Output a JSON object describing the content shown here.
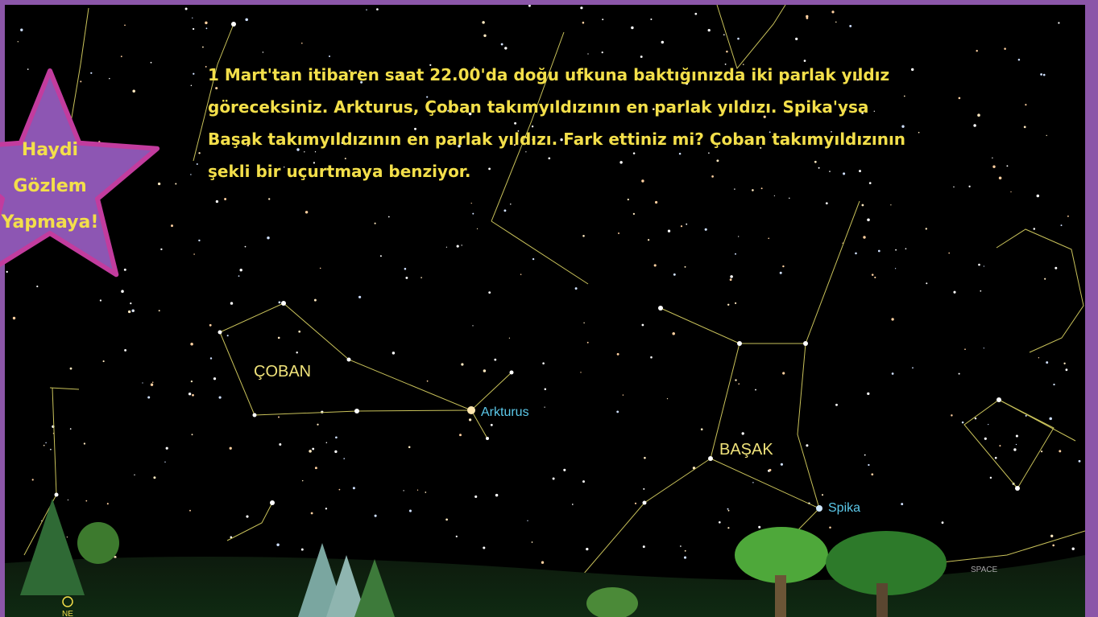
{
  "badge": {
    "lines": [
      "Haydi",
      "Gözlem",
      "Yapmaya!"
    ]
  },
  "intro": {
    "lines": [
      "1 Mart'tan itibaren saat 22.00'da doğu ufkuna baktığınızda iki parlak yıldız",
      "göreceksiniz. Arkturus, Çoban takımyıldızının en parlak yıldızı. Spika'ysa",
      "Başak takımyıldızının en parlak yıldızı. Fark ettiniz mi? Çoban takımyıldızının",
      "şekli bir uçurtmaya benziyor."
    ]
  },
  "labels": {
    "coban": "ÇOBAN",
    "arkturus": "Arkturus",
    "basak": "BAŞAK",
    "spika": "Spika",
    "space": "SPACE",
    "compass": "NE"
  }
}
